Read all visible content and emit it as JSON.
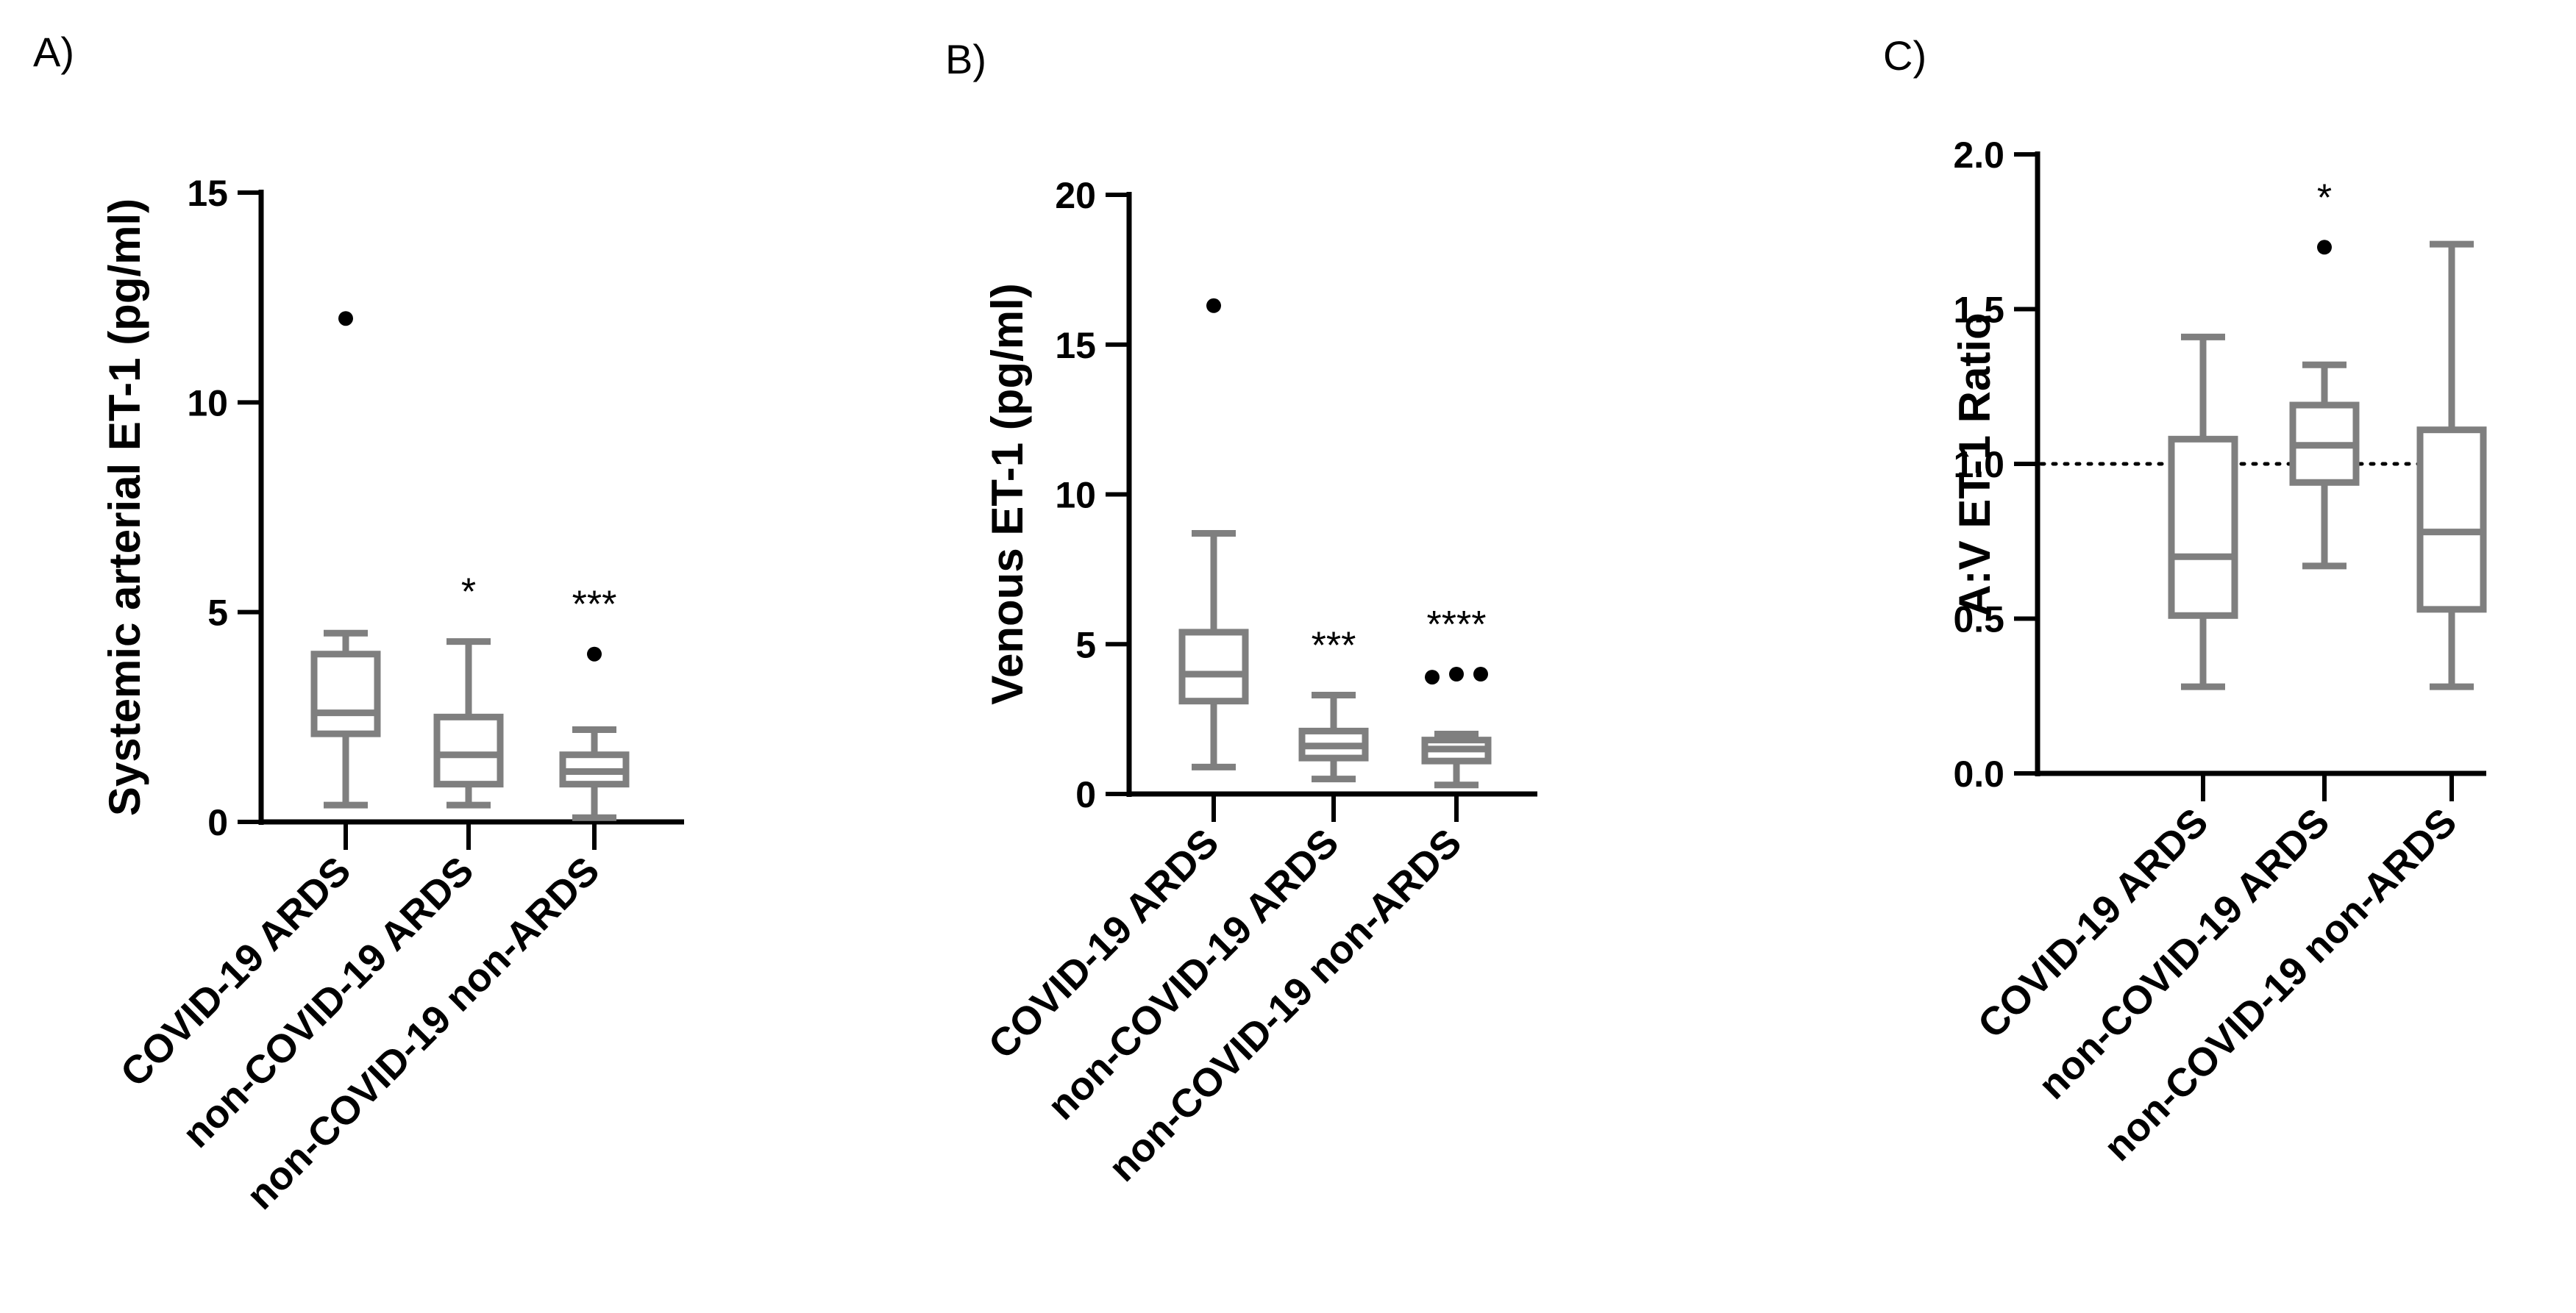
{
  "chart_data": [
    {
      "panel_label": "A)",
      "type": "box",
      "ylabel": "Systemic arterial ET-1 (pg/ml)",
      "xlabel": "",
      "ylim": [
        0,
        15
      ],
      "yticks": [
        0,
        5,
        10,
        15
      ],
      "tick_labels": [
        "0",
        "5",
        "10",
        "15"
      ],
      "categories": [
        "COVID-19 ARDS",
        "non-COVID-19 ARDS",
        "non-COVID-19 non-ARDS"
      ],
      "colors": {
        "box": "#7f7f7f",
        "axis": "#000000",
        "outlier": "#000000"
      },
      "boxes": [
        {
          "min": 0.4,
          "q1": 2.1,
          "median": 2.6,
          "q3": 4.0,
          "max": 4.5,
          "outliers": [
            [
              0,
              12.0
            ]
          ],
          "annotation": ""
        },
        {
          "min": 0.4,
          "q1": 0.9,
          "median": 1.6,
          "q3": 2.5,
          "max": 4.3,
          "outliers": [],
          "annotation": "*"
        },
        {
          "min": 0.1,
          "q1": 0.9,
          "median": 1.2,
          "q3": 1.6,
          "max": 2.2,
          "outliers": [
            [
              0,
              4.0
            ]
          ],
          "annotation": "***"
        }
      ]
    },
    {
      "panel_label": "B)",
      "type": "box",
      "ylabel": "Venous ET-1 (pg/ml)",
      "xlabel": "",
      "ylim": [
        0,
        20
      ],
      "yticks": [
        0,
        5,
        10,
        15,
        20
      ],
      "tick_labels": [
        "0",
        "5",
        "10",
        "15",
        "20"
      ],
      "categories": [
        "COVID-19 ARDS",
        "non-COVID-19 ARDS",
        "non-COVID-19 non-ARDS"
      ],
      "colors": {
        "box": "#7f7f7f",
        "axis": "#000000",
        "outlier": "#000000"
      },
      "boxes": [
        {
          "min": 0.9,
          "q1": 3.1,
          "median": 4.0,
          "q3": 5.4,
          "max": 8.7,
          "outliers": [
            [
              0,
              16.3
            ]
          ],
          "annotation": ""
        },
        {
          "min": 0.5,
          "q1": 1.2,
          "median": 1.6,
          "q3": 2.1,
          "max": 3.3,
          "outliers": [],
          "annotation": "***"
        },
        {
          "min": 0.3,
          "q1": 1.1,
          "median": 1.5,
          "q3": 1.8,
          "max": 2.0,
          "outliers": [
            [
              -0.22,
              3.9
            ],
            [
              0.0,
              4.0
            ],
            [
              0.22,
              4.0
            ]
          ],
          "annotation": "****"
        }
      ]
    },
    {
      "panel_label": "C)",
      "type": "box",
      "ylabel": "A:V ET-1 Ratio",
      "xlabel": "",
      "ylim": [
        0,
        2
      ],
      "yticks": [
        0,
        0.5,
        1,
        1.5,
        2
      ],
      "tick_labels": [
        "0.0",
        "0.5",
        "1.0",
        "1.5",
        "2.0"
      ],
      "reference_line": {
        "y": 1.0,
        "style": "dotted"
      },
      "categories": [
        "COVID-19 ARDS",
        "non-COVID-19 ARDS",
        "non-COVID-19 non-ARDS"
      ],
      "colors": {
        "box": "#7f7f7f",
        "axis": "#000000",
        "outlier": "#000000"
      },
      "boxes": [
        {
          "min": 0.28,
          "q1": 0.51,
          "median": 0.7,
          "q3": 1.08,
          "max": 1.41,
          "outliers": [],
          "annotation": ""
        },
        {
          "min": 0.67,
          "q1": 0.94,
          "median": 1.06,
          "q3": 1.19,
          "max": 1.32,
          "outliers": [
            [
              0,
              1.7
            ]
          ],
          "annotation": "*"
        },
        {
          "min": 0.28,
          "q1": 0.53,
          "median": 0.78,
          "q3": 1.11,
          "max": 1.71,
          "outliers": [],
          "annotation": ""
        }
      ]
    }
  ]
}
